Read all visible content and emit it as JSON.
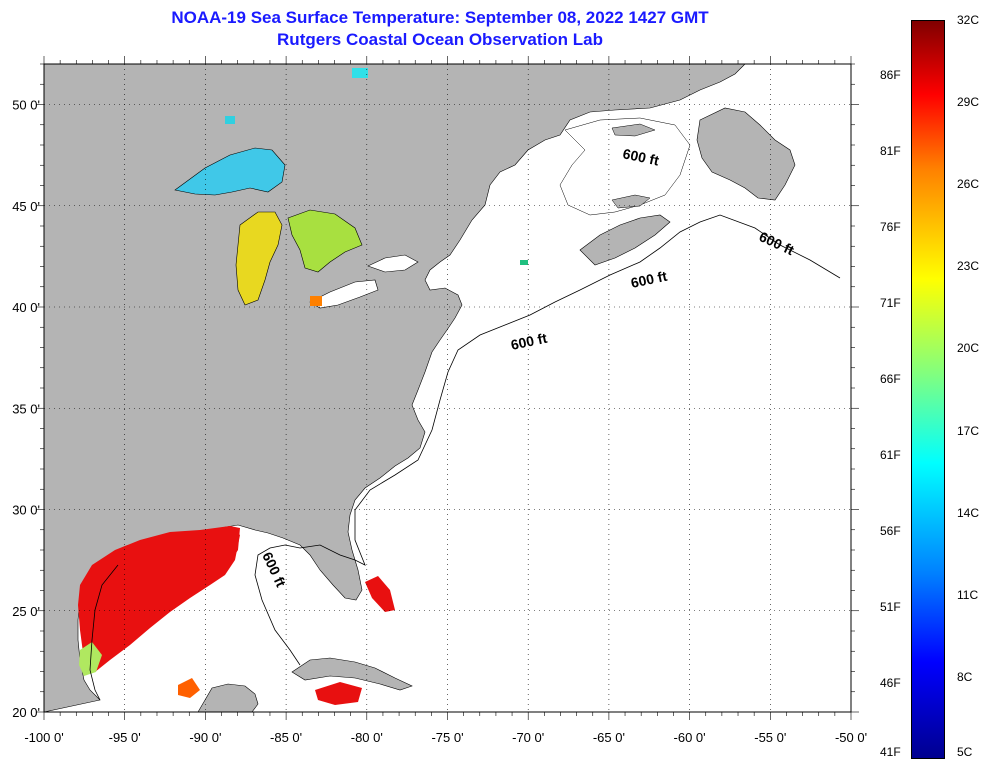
{
  "title_line1": "NOAA-19 Sea Surface Temperature:  September 08, 2022 1427 GMT",
  "title_line2": "Rutgers Coastal Ocean Observation Lab",
  "map": {
    "lon_range": [
      -100,
      -50
    ],
    "lat_range": [
      20,
      52
    ],
    "x_ticks": [
      "-100 0'",
      "-95 0'",
      "-90 0'",
      "-85 0'",
      "-80 0'",
      "-75 0'",
      "-70 0'",
      "-65 0'",
      "-60 0'",
      "-55 0'",
      "-50 0'"
    ],
    "y_ticks": [
      "50 0'",
      "45 0'",
      "40 0'",
      "35 0'",
      "30 0'",
      "25 0'",
      "20 0'"
    ],
    "contour_labels": [
      "600 ft",
      "600 ft",
      "600 ft",
      "600 ft",
      "600 ft"
    ],
    "colors": {
      "land": "#b4b4b4",
      "ocean_no_data": "#ffffff",
      "grid": "#000000"
    }
  },
  "colorbar": {
    "celsius_labels": [
      "32C",
      "29C",
      "26C",
      "23C",
      "20C",
      "17C",
      "14C",
      "11C",
      "8C",
      "5C"
    ],
    "fahrenheit_labels": [
      "86F",
      "81F",
      "76F",
      "71F",
      "66F",
      "61F",
      "56F",
      "51F",
      "46F",
      "41F"
    ],
    "range_c": [
      5,
      32
    ]
  }
}
